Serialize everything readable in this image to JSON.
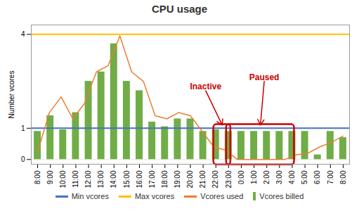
{
  "chart_data": {
    "type": "combo",
    "title": "CPU usage",
    "ylabel": "Number vcores",
    "xlim": [
      -0.5,
      24.5
    ],
    "xticks": [
      {
        "value": 0,
        "label": "8:00"
      },
      {
        "value": 1,
        "label": "9:00"
      },
      {
        "value": 2,
        "label": "10:00"
      },
      {
        "value": 3,
        "label": "11:00"
      },
      {
        "value": 4,
        "label": "12:00"
      },
      {
        "value": 5,
        "label": "13:00"
      },
      {
        "value": 6,
        "label": "14:00"
      },
      {
        "value": 7,
        "label": "15:00"
      },
      {
        "value": 8,
        "label": "16:00"
      },
      {
        "value": 9,
        "label": "17:00"
      },
      {
        "value": 10,
        "label": "18:00"
      },
      {
        "value": 11,
        "label": "19:00"
      },
      {
        "value": 12,
        "label": "20:00"
      },
      {
        "value": 13,
        "label": "21:00"
      },
      {
        "value": 14,
        "label": "22:00"
      },
      {
        "value": 15,
        "label": "23:00"
      },
      {
        "value": 16,
        "label": "0:00"
      },
      {
        "value": 17,
        "label": "1:00"
      },
      {
        "value": 18,
        "label": "2:00"
      },
      {
        "value": 19,
        "label": "3:00"
      },
      {
        "value": 20,
        "label": "4:00"
      },
      {
        "value": 21,
        "label": "5:00"
      },
      {
        "value": 22,
        "label": "6:00"
      },
      {
        "value": 23,
        "label": "7:00"
      },
      {
        "value": 24,
        "label": "8:00"
      }
    ],
    "ylim": [
      -0.15,
      4.3
    ],
    "yticks": [
      0,
      1,
      4
    ],
    "grid": true,
    "legend": "bottom",
    "series": [
      {
        "name": "Min vcores",
        "type": "hline",
        "color": "#4472C4",
        "values": [
          1
        ]
      },
      {
        "name": "Max vcores",
        "type": "hline",
        "color": "#FFC000",
        "values": [
          4
        ]
      },
      {
        "name": "Vcores used",
        "type": "line",
        "color": "#ED7D31",
        "x": [
          0,
          0.923077,
          1.846154,
          2.769231,
          3.692308,
          4.615385,
          5.538462,
          6.461538,
          7.384615,
          8.307692,
          9.230769,
          10.153846,
          11.076923,
          12,
          12.923077,
          13.846154,
          14.769231,
          15.692308,
          16.615385,
          17.538462,
          18.461538,
          19.384615,
          20.307692,
          21.230769,
          22.153846,
          23.076923,
          24
        ],
        "values": [
          0.25,
          1.5,
          2.0,
          1.3,
          1.8,
          2.8,
          3.0,
          3.95,
          2.8,
          2.5,
          1.4,
          1.3,
          1.5,
          1.4,
          0.9,
          0.4,
          0.3,
          0.0,
          0.0,
          0.0,
          0.0,
          0.0,
          0.15,
          0.2,
          0.4,
          0.55,
          0.75
        ]
      },
      {
        "name": "Vcores billed",
        "type": "bar",
        "color": "#70AD47",
        "x": [
          0,
          1,
          2,
          3,
          4,
          5,
          6,
          7,
          8,
          9,
          10,
          11,
          12,
          13,
          14,
          15,
          16,
          17,
          18,
          19,
          20,
          21,
          22,
          23,
          24
        ],
        "values": [
          0.9,
          1.4,
          0.95,
          1.5,
          2.5,
          2.8,
          3.7,
          2.5,
          2.2,
          1.2,
          1.05,
          1.3,
          1.3,
          0.9,
          0.95,
          0.9,
          0.9,
          0.9,
          0.9,
          0.9,
          0.9,
          0.9,
          0.15,
          0.9,
          0.7
        ]
      }
    ],
    "annotations": [
      {
        "text": "Inactive",
        "x": 13.2,
        "y": 2.2,
        "arrow_x": 14.5,
        "arrow_y": 1.1,
        "color": "#CC0000",
        "box": {
          "x0": 14,
          "x1": 15,
          "y0": -0.1,
          "y1": 1.05
        }
      },
      {
        "text": "Paused",
        "x": 17.8,
        "y": 2.5,
        "arrow_x": 17.5,
        "arrow_y": 1.1,
        "color": "#CC0000",
        "box": {
          "x0": 15,
          "x1": 20,
          "y0": -0.1,
          "y1": 1.05
        }
      }
    ]
  }
}
